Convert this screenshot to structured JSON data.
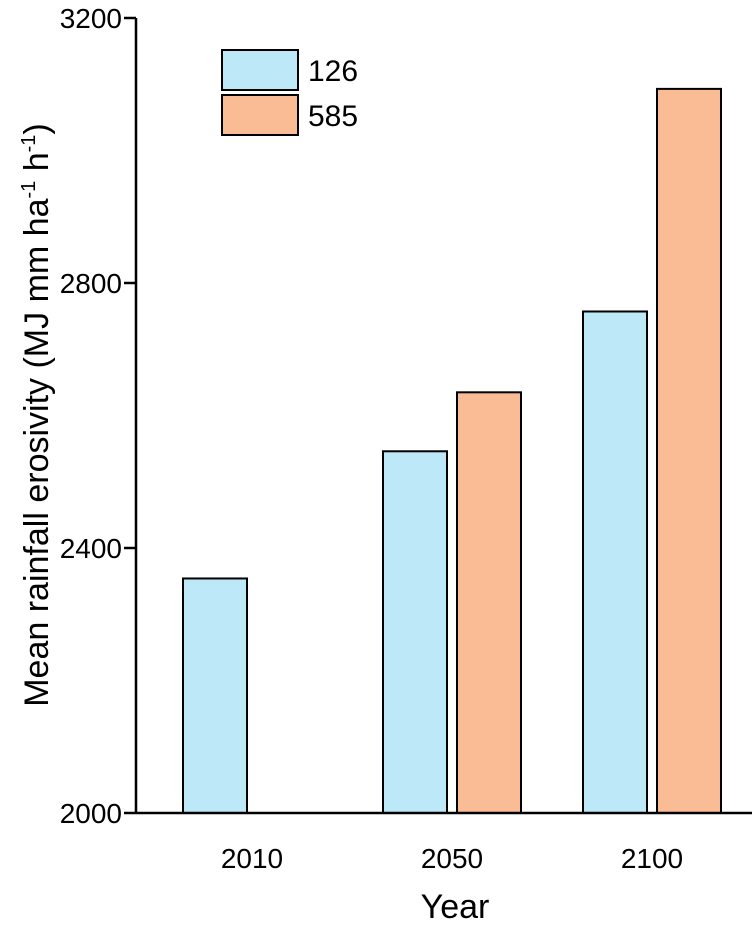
{
  "chart_data": {
    "type": "bar",
    "categories": [
      "2010",
      "2050",
      "2100"
    ],
    "series": [
      {
        "name": "126",
        "color": "#bde8f8",
        "values": [
          2354,
          2546,
          2757
        ]
      },
      {
        "name": "585",
        "color": "#f9bc94",
        "values": [
          null,
          2635,
          3093
        ]
      }
    ],
    "xlabel": "Year",
    "ylabel": {
      "main": "Mean rainfall erosivity (MJ mm ha",
      "sup1": "-1",
      "mid": " h",
      "sup2": "-1",
      "end": ")"
    },
    "ylim": [
      2000,
      3200
    ],
    "yticks": [
      "2000",
      "2400",
      "2800",
      "3200"
    ],
    "legend_position": "top-left",
    "grid": false
  }
}
